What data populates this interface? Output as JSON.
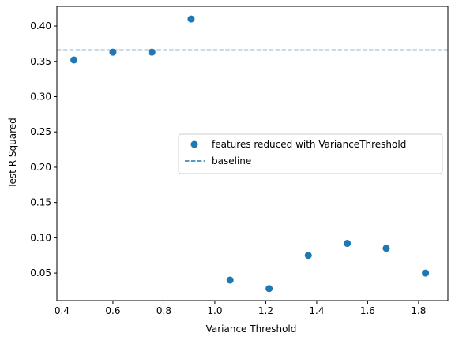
{
  "chart_data": {
    "type": "scatter",
    "title": "",
    "xlabel": "Variance Threshold",
    "ylabel": "Test R-Squared",
    "xlim": [
      0.38,
      1.915
    ],
    "ylim": [
      0.011,
      0.428
    ],
    "xticks": [
      0.4,
      0.6,
      0.8,
      1.0,
      1.2,
      1.4,
      1.6,
      1.8
    ],
    "xtick_labels": [
      "0.4",
      "0.6",
      "0.8",
      "1.0",
      "1.2",
      "1.4",
      "1.6",
      "1.8"
    ],
    "yticks": [
      0.05,
      0.1,
      0.15,
      0.2,
      0.25,
      0.3,
      0.35,
      0.4
    ],
    "ytick_labels": [
      "0.05",
      "0.10",
      "0.15",
      "0.20",
      "0.25",
      "0.30",
      "0.35",
      "0.40"
    ],
    "grid": false,
    "legend_position": "center-right",
    "series": [
      {
        "name": "features reduced with VarianceThreshold",
        "kind": "scatter",
        "color": "#1f77b4",
        "x": [
          0.447,
          0.6,
          0.753,
          0.907,
          1.06,
          1.213,
          1.367,
          1.52,
          1.673,
          1.827
        ],
        "y": [
          0.352,
          0.363,
          0.363,
          0.41,
          0.04,
          0.028,
          0.075,
          0.092,
          0.085,
          0.05
        ]
      },
      {
        "name": "baseline",
        "kind": "hline",
        "color": "#1f77b4",
        "linestyle": "dashed",
        "y": 0.366
      }
    ]
  }
}
